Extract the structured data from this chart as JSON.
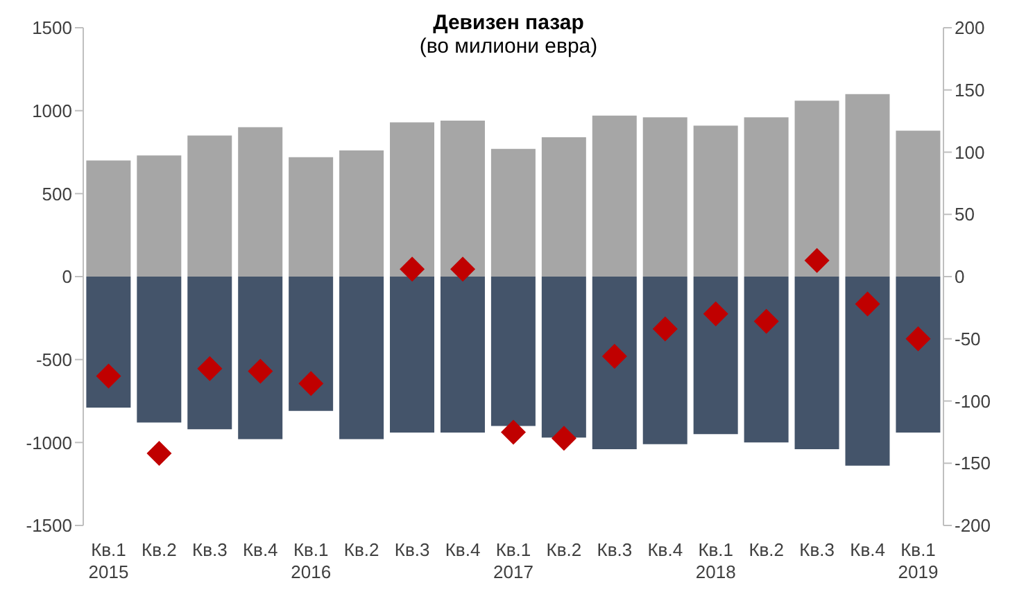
{
  "chart_data": {
    "type": "bar",
    "title": "Девизен пазар",
    "subtitle": "(во милиони евра)",
    "stacked": true,
    "categories": [
      "Кв.1\n2015",
      "Кв.2",
      "Кв.3",
      "Кв.4",
      "Кв.1\n2016",
      "Кв.2",
      "Кв.3",
      "Кв.4",
      "Кв.1\n2017",
      "Кв.2",
      "Кв.3",
      "Кв.4",
      "Кв.1\n2018",
      "Кв.2",
      "Кв.3",
      "Кв.4",
      "Кв.1\n2019"
    ],
    "series": [
      {
        "color": "#a6a6a6",
        "values": [
          700,
          730,
          850,
          900,
          720,
          760,
          930,
          940,
          770,
          840,
          970,
          960,
          910,
          960,
          1060,
          1100,
          880
        ]
      },
      {
        "color": "#44546a",
        "values": [
          -790,
          -880,
          -920,
          -980,
          -810,
          -980,
          -940,
          -940,
          -900,
          -970,
          -1040,
          -1010,
          -950,
          -1000,
          -1040,
          -1140,
          -940
        ]
      },
      {
        "type": "scatter",
        "axis": "y2",
        "color": "#c00000",
        "marker": "diamond",
        "values": [
          -80,
          -142,
          -74,
          -76,
          -86,
          null,
          6,
          6,
          -125,
          -130,
          -64,
          -42,
          -30,
          -36,
          13,
          -22,
          -50
        ]
      }
    ],
    "ylim": [
      -1500,
      1500
    ],
    "yticks": [
      -1500,
      -1000,
      -500,
      0,
      500,
      1000,
      1500
    ],
    "y2lim": [
      -200,
      200
    ],
    "y2ticks": [
      -200,
      -150,
      -100,
      -50,
      0,
      50,
      100,
      150,
      200
    ]
  }
}
